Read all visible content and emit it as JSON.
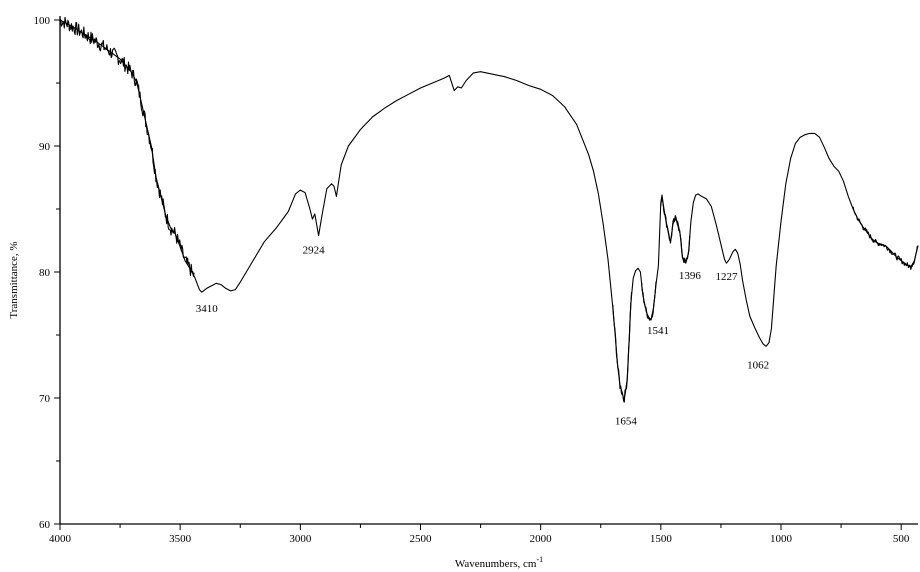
{
  "chart_data": {
    "type": "line",
    "title": "",
    "xlabel": "Wavenumbers, cm",
    "xlabel_superscript": "-1",
    "ylabel": "Transmittance, %",
    "xlim": [
      4000,
      430
    ],
    "ylim": [
      60,
      100
    ],
    "x_reversed": true,
    "x_ticks": [
      4000,
      3500,
      3000,
      2500,
      2000,
      1500,
      1000,
      500
    ],
    "y_ticks": [
      60,
      70,
      80,
      90,
      100
    ],
    "grid": false,
    "legend": "none",
    "series": [
      {
        "line_color": "#000000",
        "points": [
          [
            4000,
            100
          ],
          [
            3950,
            99.5
          ],
          [
            3900,
            98.9
          ],
          [
            3850,
            98.3
          ],
          [
            3800,
            97.6
          ],
          [
            3750,
            96.9
          ],
          [
            3700,
            95.8
          ],
          [
            3680,
            95.0
          ],
          [
            3650,
            92.5
          ],
          [
            3620,
            90.0
          ],
          [
            3600,
            87.5
          ],
          [
            3580,
            86.0
          ],
          [
            3560,
            84.5
          ],
          [
            3540,
            83.5
          ],
          [
            3520,
            83.0
          ],
          [
            3500,
            82.0
          ],
          [
            3480,
            80.9
          ],
          [
            3460,
            80.3
          ],
          [
            3440,
            79.6
          ],
          [
            3420,
            78.6
          ],
          [
            3410,
            78.4
          ],
          [
            3390,
            78.7
          ],
          [
            3370,
            78.9
          ],
          [
            3350,
            79.1
          ],
          [
            3330,
            79.0
          ],
          [
            3310,
            78.7
          ],
          [
            3290,
            78.5
          ],
          [
            3270,
            78.6
          ],
          [
            3250,
            79.2
          ],
          [
            3200,
            80.8
          ],
          [
            3150,
            82.4
          ],
          [
            3100,
            83.5
          ],
          [
            3050,
            84.8
          ],
          [
            3020,
            86.2
          ],
          [
            3000,
            86.5
          ],
          [
            2980,
            86.3
          ],
          [
            2960,
            85.0
          ],
          [
            2950,
            84.2
          ],
          [
            2940,
            84.6
          ],
          [
            2924,
            82.9
          ],
          [
            2910,
            84.5
          ],
          [
            2890,
            86.6
          ],
          [
            2870,
            87.0
          ],
          [
            2860,
            86.8
          ],
          [
            2850,
            86.0
          ],
          [
            2830,
            88.5
          ],
          [
            2800,
            90.0
          ],
          [
            2750,
            91.3
          ],
          [
            2700,
            92.3
          ],
          [
            2650,
            93.0
          ],
          [
            2600,
            93.6
          ],
          [
            2550,
            94.1
          ],
          [
            2500,
            94.6
          ],
          [
            2450,
            95.0
          ],
          [
            2400,
            95.4
          ],
          [
            2380,
            95.6
          ],
          [
            2360,
            94.4
          ],
          [
            2345,
            94.7
          ],
          [
            2330,
            94.6
          ],
          [
            2310,
            95.2
          ],
          [
            2280,
            95.8
          ],
          [
            2250,
            95.9
          ],
          [
            2200,
            95.7
          ],
          [
            2150,
            95.5
          ],
          [
            2100,
            95.2
          ],
          [
            2050,
            94.8
          ],
          [
            2000,
            94.5
          ],
          [
            1950,
            94.0
          ],
          [
            1900,
            93.1
          ],
          [
            1850,
            91.7
          ],
          [
            1800,
            89.3
          ],
          [
            1780,
            88.0
          ],
          [
            1760,
            86.2
          ],
          [
            1740,
            83.8
          ],
          [
            1720,
            81.0
          ],
          [
            1700,
            77.2
          ],
          [
            1690,
            75.0
          ],
          [
            1680,
            72.6
          ],
          [
            1670,
            71.0
          ],
          [
            1660,
            70.4
          ],
          [
            1654,
            69.8
          ],
          [
            1648,
            70.4
          ],
          [
            1640,
            71.5
          ],
          [
            1632,
            74.5
          ],
          [
            1625,
            77.5
          ],
          [
            1615,
            79.5
          ],
          [
            1605,
            80.1
          ],
          [
            1595,
            80.3
          ],
          [
            1585,
            80.0
          ],
          [
            1575,
            78.2
          ],
          [
            1560,
            76.8
          ],
          [
            1550,
            76.4
          ],
          [
            1541,
            76.2
          ],
          [
            1530,
            77.2
          ],
          [
            1520,
            79.0
          ],
          [
            1510,
            80.5
          ],
          [
            1505,
            83.0
          ],
          [
            1500,
            85.5
          ],
          [
            1495,
            86.1
          ],
          [
            1490,
            85.4
          ],
          [
            1480,
            84.2
          ],
          [
            1470,
            83.3
          ],
          [
            1460,
            82.3
          ],
          [
            1450,
            83.8
          ],
          [
            1440,
            84.2
          ],
          [
            1430,
            84.0
          ],
          [
            1420,
            83.0
          ],
          [
            1410,
            81.2
          ],
          [
            1400,
            80.8
          ],
          [
            1396,
            80.7
          ],
          [
            1385,
            81.5
          ],
          [
            1375,
            84.0
          ],
          [
            1365,
            85.5
          ],
          [
            1355,
            86.1
          ],
          [
            1345,
            86.2
          ],
          [
            1330,
            86.0
          ],
          [
            1310,
            85.8
          ],
          [
            1290,
            85.2
          ],
          [
            1270,
            83.8
          ],
          [
            1250,
            82.2
          ],
          [
            1235,
            81.0
          ],
          [
            1227,
            80.7
          ],
          [
            1215,
            81.0
          ],
          [
            1200,
            81.6
          ],
          [
            1190,
            81.8
          ],
          [
            1180,
            81.5
          ],
          [
            1170,
            80.6
          ],
          [
            1160,
            79.3
          ],
          [
            1145,
            77.8
          ],
          [
            1130,
            76.5
          ],
          [
            1110,
            75.6
          ],
          [
            1090,
            74.8
          ],
          [
            1075,
            74.3
          ],
          [
            1062,
            74.1
          ],
          [
            1050,
            74.4
          ],
          [
            1040,
            75.5
          ],
          [
            1030,
            78.0
          ],
          [
            1020,
            80.5
          ],
          [
            1000,
            84.0
          ],
          [
            980,
            87.0
          ],
          [
            960,
            89.0
          ],
          [
            940,
            90.2
          ],
          [
            920,
            90.7
          ],
          [
            900,
            90.9
          ],
          [
            880,
            91.0
          ],
          [
            860,
            91.0
          ],
          [
            840,
            90.7
          ],
          [
            820,
            89.9
          ],
          [
            800,
            89.0
          ],
          [
            780,
            88.4
          ],
          [
            760,
            88.0
          ],
          [
            740,
            87.2
          ],
          [
            720,
            86.0
          ],
          [
            700,
            85.0
          ],
          [
            680,
            84.2
          ],
          [
            660,
            83.6
          ],
          [
            640,
            83.1
          ],
          [
            620,
            82.6
          ],
          [
            600,
            82.3
          ],
          [
            580,
            82.2
          ],
          [
            560,
            82.0
          ],
          [
            540,
            81.6
          ],
          [
            520,
            81.2
          ],
          [
            500,
            80.9
          ],
          [
            480,
            80.6
          ],
          [
            460,
            80.4
          ],
          [
            445,
            80.9
          ],
          [
            430,
            82.1
          ]
        ]
      }
    ],
    "annotations": [
      {
        "label": "3410",
        "x": 3410,
        "y": 78.4
      },
      {
        "label": "2924",
        "x": 2924,
        "y": 82.9
      },
      {
        "label": "1654",
        "x": 1654,
        "y": 69.8
      },
      {
        "label": "1541",
        "x": 1541,
        "y": 76.2
      },
      {
        "label": "1396",
        "x": 1396,
        "y": 80.7
      },
      {
        "label": "1227",
        "x": 1227,
        "y": 80.7
      },
      {
        "label": "1062",
        "x": 1062,
        "y": 74.1
      }
    ]
  }
}
